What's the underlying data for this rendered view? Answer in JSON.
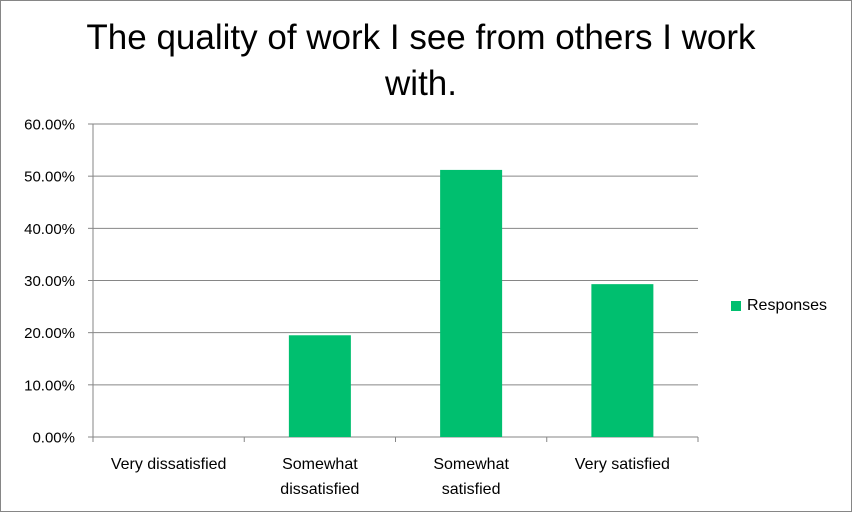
{
  "chart_data": {
    "type": "bar",
    "title": "The quality of work I see from others I work with.",
    "categories": [
      [
        "Very dissatisfied"
      ],
      [
        "Somewhat",
        "dissatisfied"
      ],
      [
        "Somewhat",
        "satisfied"
      ],
      [
        "Very satisfied"
      ]
    ],
    "series": [
      {
        "name": "Responses",
        "values": [
          0,
          19.5,
          51.2,
          29.3
        ],
        "color": "#00BF6F"
      }
    ],
    "y_ticks": [
      "0.00%",
      "10.00%",
      "20.00%",
      "30.00%",
      "40.00%",
      "50.00%",
      "60.00%"
    ],
    "ylim": [
      0,
      60
    ],
    "grid": true,
    "legend_position": "right",
    "colors": {
      "bar": "#00BF6F",
      "gridline": "#868686",
      "axis": "#868686",
      "text": "#000000"
    }
  }
}
